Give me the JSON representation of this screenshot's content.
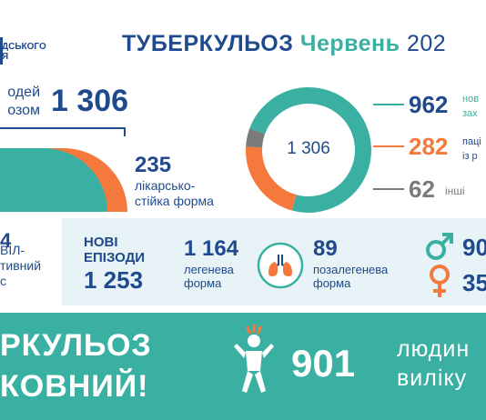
{
  "header": {
    "logo_text": "ДСЬКОГО\nЯ",
    "title_main": "ТУБЕРКУЛЬОЗ",
    "title_month": "Червень",
    "title_year": "202"
  },
  "colors": {
    "navy": "#1f4a8c",
    "teal": "#3ab0a2",
    "orange": "#f5783c",
    "gray": "#7b7b7b",
    "band": "#e7f3f6"
  },
  "people": {
    "label": "одей\nозом",
    "total": "1 306"
  },
  "drug_resistant": {
    "value": "235",
    "label": "лікарсько-\nстійка форма"
  },
  "chart_data": {
    "type": "pie",
    "center_label": "1 306",
    "values": [
      962,
      282,
      62
    ],
    "colors": [
      "#3ab0a2",
      "#f5783c",
      "#7b7b7b"
    ],
    "legend": [
      {
        "value": "962",
        "label": "нов\nзах"
      },
      {
        "value": "282",
        "label": "паці\nіз р"
      },
      {
        "value": "62",
        "label": "інші"
      }
    ]
  },
  "left_middle": {
    "number": "4",
    "text": "ВІЛ-\nтивний\nс"
  },
  "new_episodes": {
    "label": "НОВІ\nЕПІЗОДИ",
    "value": "1 253"
  },
  "pulmonary": {
    "value": "1 164",
    "label": "легенева\nформа"
  },
  "extrapulmonary": {
    "value": "89",
    "label": "позалегенева\nформа"
  },
  "gender": {
    "male_value": "90",
    "female_value": "35",
    "male_icon": "male-symbol-icon",
    "female_icon": "female-symbol-icon"
  },
  "banner": {
    "text": "РКУЛЬОЗ\nКОВНИЙ!",
    "cured_value": "901",
    "cured_label": "людин\nвиліку",
    "icon": "person-cheering-icon"
  }
}
